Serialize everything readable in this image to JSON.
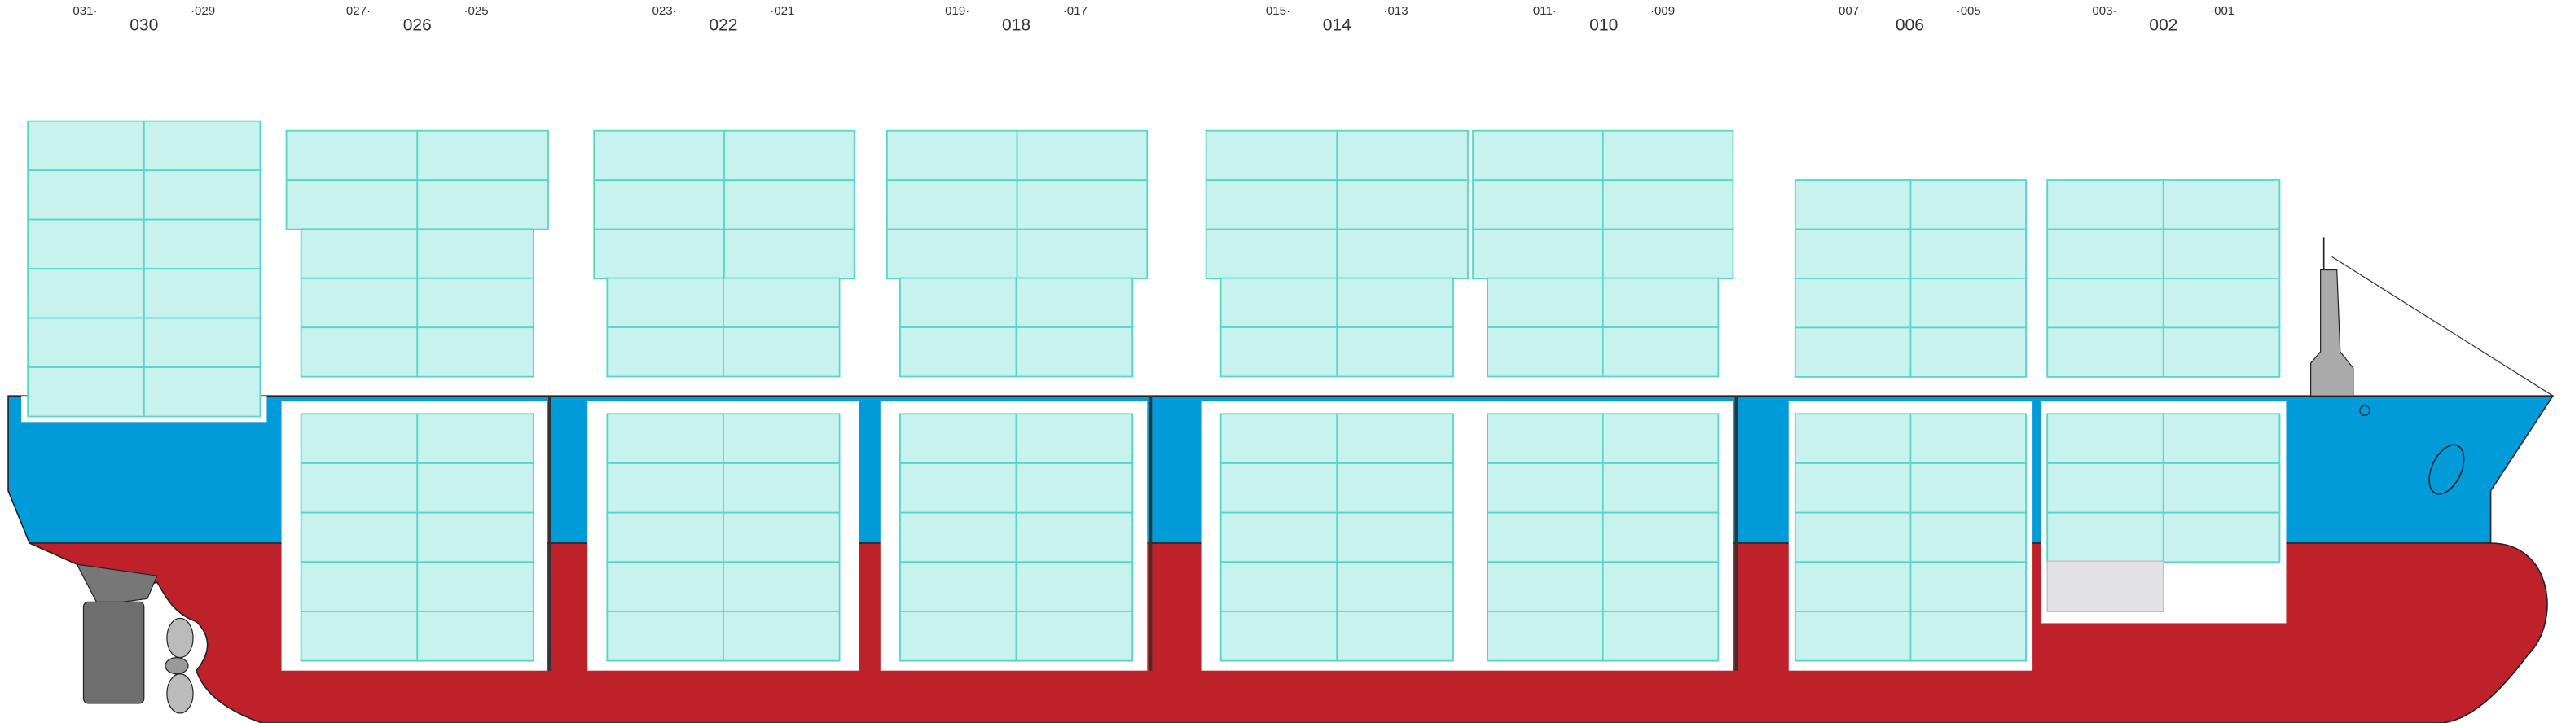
{
  "bays": [
    {
      "label": "030",
      "left": "031·",
      "right": "·029"
    },
    {
      "label": "026",
      "left": "027·",
      "right": "·025"
    },
    {
      "label": "022",
      "left": "023·",
      "right": "·021"
    },
    {
      "label": "018",
      "left": "019·",
      "right": "·017"
    },
    {
      "label": "014",
      "left": "015·",
      "right": "·013"
    },
    {
      "label": "010",
      "left": "011·",
      "right": "·009"
    },
    {
      "label": "006",
      "left": "007·",
      "right": "·005"
    },
    {
      "label": "002",
      "left": "003·",
      "right": "·001"
    }
  ]
}
